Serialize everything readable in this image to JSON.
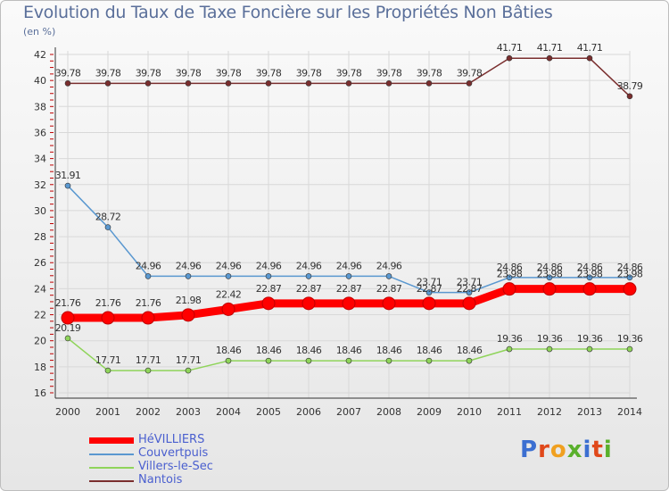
{
  "title": "Evolution du Taux de Taxe Foncière sur les Propriétés Non Bâties",
  "subtitle": "(en %)",
  "logo": [
    "P",
    "r",
    "o",
    "x",
    "i",
    "t",
    "i"
  ],
  "logo_colors": [
    "#3c6fd1",
    "#e0481a",
    "#f0a020",
    "#5ab02c",
    "#3c6fd1",
    "#e0481a",
    "#5ab02c"
  ],
  "chart_data": {
    "type": "line",
    "x": [
      "2000",
      "2001",
      "2002",
      "2003",
      "2004",
      "2005",
      "2006",
      "2007",
      "2008",
      "2009",
      "2010",
      "2011",
      "2012",
      "2013",
      "2014"
    ],
    "ylim": [
      16,
      42
    ],
    "yticks": [
      16,
      18,
      20,
      22,
      24,
      26,
      28,
      30,
      32,
      34,
      36,
      38,
      40,
      42
    ],
    "grid": true,
    "legend_position": "bottom-left",
    "series": [
      {
        "name": "HéVILLIERS",
        "color": "#ff0000",
        "values": [
          21.76,
          21.76,
          21.76,
          21.98,
          22.42,
          22.87,
          22.87,
          22.87,
          22.87,
          22.87,
          22.87,
          23.98,
          23.98,
          23.98,
          23.98
        ],
        "labels": [
          "21.76",
          "21.76",
          "21.76",
          "21.98",
          "22.42",
          "22.87",
          "22.87",
          "22.87",
          "22.87",
          "22.87",
          "22.87",
          "23.98",
          "23.98",
          "23.98",
          "23.98"
        ]
      },
      {
        "name": "Couvertpuis",
        "color": "#5a98d0",
        "values": [
          31.91,
          28.72,
          24.96,
          24.96,
          24.96,
          24.96,
          24.96,
          24.96,
          24.96,
          23.71,
          23.71,
          24.86,
          24.86,
          24.86,
          24.86
        ],
        "labels": [
          "31.91",
          "28.72",
          "24.96",
          "24.96",
          "24.96",
          "24.96",
          "24.96",
          "24.96",
          "24.96",
          "23.71",
          "23.71",
          "24.86",
          "24.86",
          "24.86",
          "24.86"
        ]
      },
      {
        "name": "Villers-le-Sec",
        "color": "#8fd45a",
        "values": [
          20.19,
          17.71,
          17.71,
          17.71,
          18.46,
          18.46,
          18.46,
          18.46,
          18.46,
          18.46,
          18.46,
          19.36,
          19.36,
          19.36,
          19.36
        ],
        "labels": [
          "20.19",
          "17.71",
          "17.71",
          "17.71",
          "18.46",
          "18.46",
          "18.46",
          "18.46",
          "18.46",
          "18.46",
          "18.46",
          "19.36",
          "19.36",
          "19.36",
          "19.36"
        ]
      },
      {
        "name": "Nantois",
        "color": "#7a2e2e",
        "values": [
          39.78,
          39.78,
          39.78,
          39.78,
          39.78,
          39.78,
          39.78,
          39.78,
          39.78,
          39.78,
          39.78,
          41.71,
          41.71,
          41.71,
          38.79
        ],
        "labels": [
          "39.78",
          "39.78",
          "39.78",
          "39.78",
          "39.78",
          "39.78",
          "39.78",
          "39.78",
          "39.78",
          "39.78",
          "39.78",
          "41.71",
          "41.71",
          "41.71",
          "38.79"
        ]
      }
    ]
  }
}
